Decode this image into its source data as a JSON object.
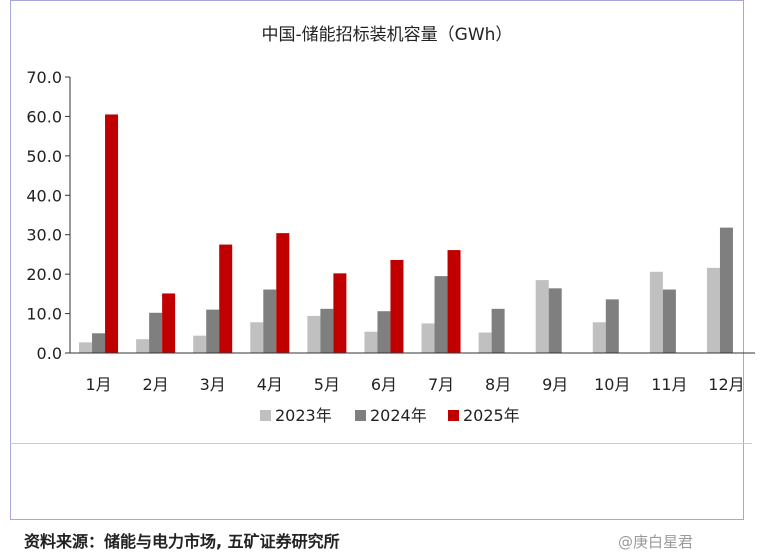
{
  "source": "资料来源：储能与电力市场, 五矿证券研究所",
  "watermark": "@庚白星君",
  "chart_data": {
    "type": "bar",
    "title": "中国-储能招标装机容量（GWh）",
    "xlabel": "",
    "ylabel": "",
    "ylim": [
      0,
      70
    ],
    "yticks": [
      "0.0",
      "10.0",
      "20.0",
      "30.0",
      "40.0",
      "50.0",
      "60.0",
      "70.0"
    ],
    "grid": false,
    "legend_position": "bottom",
    "categories": [
      "1月",
      "2月",
      "3月",
      "4月",
      "5月",
      "6月",
      "7月",
      "8月",
      "9月",
      "10月",
      "11月",
      "12月"
    ],
    "series": [
      {
        "name": "2023年",
        "color": "#c0c0c0",
        "values": [
          2.7,
          3.5,
          4.4,
          7.8,
          9.4,
          5.4,
          7.5,
          5.2,
          18.5,
          7.8,
          20.6,
          21.6
        ]
      },
      {
        "name": "2024年",
        "color": "#7f7f7f",
        "values": [
          5.0,
          10.2,
          11.0,
          16.1,
          11.2,
          10.6,
          19.5,
          11.2,
          16.4,
          13.6,
          16.1,
          31.8
        ]
      },
      {
        "name": "2025年",
        "color": "#c00000",
        "values": [
          60.5,
          15.1,
          27.5,
          30.4,
          20.2,
          23.6,
          26.1,
          null,
          null,
          null,
          null,
          null
        ]
      }
    ]
  }
}
